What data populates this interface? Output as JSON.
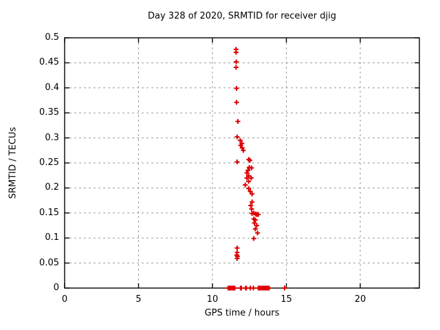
{
  "chart_data": {
    "type": "scatter",
    "title": "Day 328 of 2020, SRMTID for receiver djig",
    "xlabel": "GPS time / hours",
    "ylabel": "SRMTID / TECUs",
    "xlim": [
      0,
      24
    ],
    "ylim": [
      0,
      0.5
    ],
    "x_ticks": [
      0,
      5,
      10,
      15,
      20
    ],
    "x_tick_labels": [
      "0",
      "5",
      "10",
      "15",
      "20"
    ],
    "y_ticks": [
      0,
      0.05,
      0.1,
      0.15,
      0.2,
      0.25,
      0.3,
      0.35,
      0.4,
      0.45,
      0.5
    ],
    "y_tick_labels": [
      "0",
      "0.05",
      "0.1",
      "0.15",
      "0.2",
      "0.25",
      "0.3",
      "0.35",
      "0.4",
      "0.45",
      "0.5"
    ],
    "grid": "dashed-gray-at-every-tick",
    "legend": "none",
    "marker": "plus",
    "marker_color": "#dd0000",
    "grid_color": "#9a9a9a",
    "border_color": "#000000",
    "series_name": "SRMTID",
    "points": [
      [
        11.6,
        0.477
      ],
      [
        11.6,
        0.471
      ],
      [
        11.61,
        0.452
      ],
      [
        11.6,
        0.441
      ],
      [
        11.63,
        0.399
      ],
      [
        11.63,
        0.371
      ],
      [
        11.72,
        0.333
      ],
      [
        11.67,
        0.302
      ],
      [
        11.88,
        0.295
      ],
      [
        11.99,
        0.289
      ],
      [
        11.91,
        0.285
      ],
      [
        12.01,
        0.28
      ],
      [
        12.09,
        0.275
      ],
      [
        11.67,
        0.252
      ],
      [
        12.46,
        0.257
      ],
      [
        12.53,
        0.255
      ],
      [
        12.49,
        0.241
      ],
      [
        12.65,
        0.24
      ],
      [
        12.4,
        0.235
      ],
      [
        12.33,
        0.23
      ],
      [
        12.45,
        0.224
      ],
      [
        12.33,
        0.22
      ],
      [
        12.62,
        0.22
      ],
      [
        12.45,
        0.213
      ],
      [
        12.22,
        0.206
      ],
      [
        12.45,
        0.199
      ],
      [
        12.56,
        0.193
      ],
      [
        12.68,
        0.188
      ],
      [
        12.68,
        0.172
      ],
      [
        12.59,
        0.165
      ],
      [
        12.65,
        0.158
      ],
      [
        12.68,
        0.149
      ],
      [
        12.8,
        0.15
      ],
      [
        12.93,
        0.148
      ],
      [
        13.0,
        0.147
      ],
      [
        13.1,
        0.147
      ],
      [
        12.8,
        0.138
      ],
      [
        12.9,
        0.136
      ],
      [
        12.84,
        0.13
      ],
      [
        13.0,
        0.125
      ],
      [
        12.9,
        0.118
      ],
      [
        13.05,
        0.11
      ],
      [
        12.8,
        0.099
      ],
      [
        11.67,
        0.08
      ],
      [
        11.67,
        0.071
      ],
      [
        11.65,
        0.066
      ],
      [
        11.69,
        0.063
      ],
      [
        11.67,
        0.059
      ]
    ],
    "zero_band_x": [
      11.06,
      11.15,
      11.24,
      11.33,
      11.42,
      11.51,
      11.9,
      11.95,
      12.25,
      12.29,
      12.56,
      12.77,
      13.11,
      13.2,
      13.29,
      13.38,
      13.47,
      13.56,
      13.65,
      13.74,
      13.84,
      14.88
    ]
  }
}
